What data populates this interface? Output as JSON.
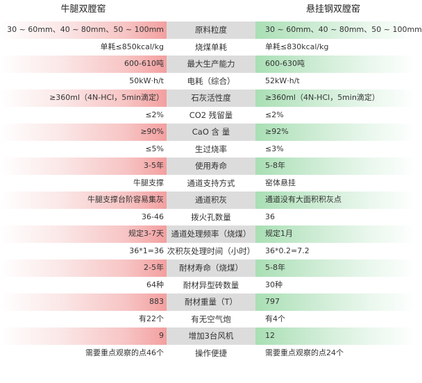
{
  "header": {
    "left_title": "牛腿双膛窑",
    "right_title": "悬挂钢双膛窑"
  },
  "rows": [
    {
      "left": "30 ~ 60mm、40 ~ 80mm、50 ~ 100mm",
      "mid": "原料粒度",
      "right": "30 ~ 60mm、40 ~ 80mm、50 ~ 100mm"
    },
    {
      "left": "单耗≤850kcal/kg",
      "mid": "烧煤单耗",
      "right": "单耗≤830kcal/kg"
    },
    {
      "left": "600-610吨",
      "mid": "最大生产能力",
      "right": "600-630吨"
    },
    {
      "left": "50kW·h/t",
      "mid": "电耗（综合）",
      "right": "52kW·h/t"
    },
    {
      "left": "≥360ml（4N-HCl，5min滴定）",
      "mid": "石灰活性度",
      "right": "≥360ml（4N-HCl，5min滴定）"
    },
    {
      "left": "≤2%",
      "mid": "CO2 残留量",
      "right": "≤2%"
    },
    {
      "left": "≥90%",
      "mid": "CaO 含 量",
      "right": "≥92%"
    },
    {
      "left": "≤5%",
      "mid": "生过烧率",
      "right": "≤3%"
    },
    {
      "left": "3-5年",
      "mid": "使用寿命",
      "right": "5-8年"
    },
    {
      "left": "牛腿支撑",
      "mid": "通道支持方式",
      "right": "窑体悬挂"
    },
    {
      "left": "牛腿支撑台阶容易集灰",
      "mid": "通道积灰",
      "right": "通道没有大面积积灰点"
    },
    {
      "left": "36-46",
      "mid": "拨火孔数量",
      "right": "36"
    },
    {
      "left": "规定3-7天",
      "mid": "通道处理频率（烧煤）",
      "right": "规定1月"
    },
    {
      "left": "36*1=36",
      "mid": "次积灰处理时间（小时）",
      "right": "36*0.2=7.2"
    },
    {
      "left": "2-5年",
      "mid": "耐材寿命（烧煤）",
      "right": "5-8年"
    },
    {
      "left": "64种",
      "mid": "耐材异型砖数量",
      "right": "30种"
    },
    {
      "left": "883",
      "mid": "耐材重量（T）",
      "right": "797"
    },
    {
      "left": "有22个",
      "mid": "有无空气炮",
      "right": "有4个"
    },
    {
      "left": "9",
      "mid": "增加3台风机",
      "right": "12"
    },
    {
      "left": "需要重点观察的点46个",
      "mid": "操作便捷",
      "right": "需要重点观察的点24个"
    }
  ]
}
